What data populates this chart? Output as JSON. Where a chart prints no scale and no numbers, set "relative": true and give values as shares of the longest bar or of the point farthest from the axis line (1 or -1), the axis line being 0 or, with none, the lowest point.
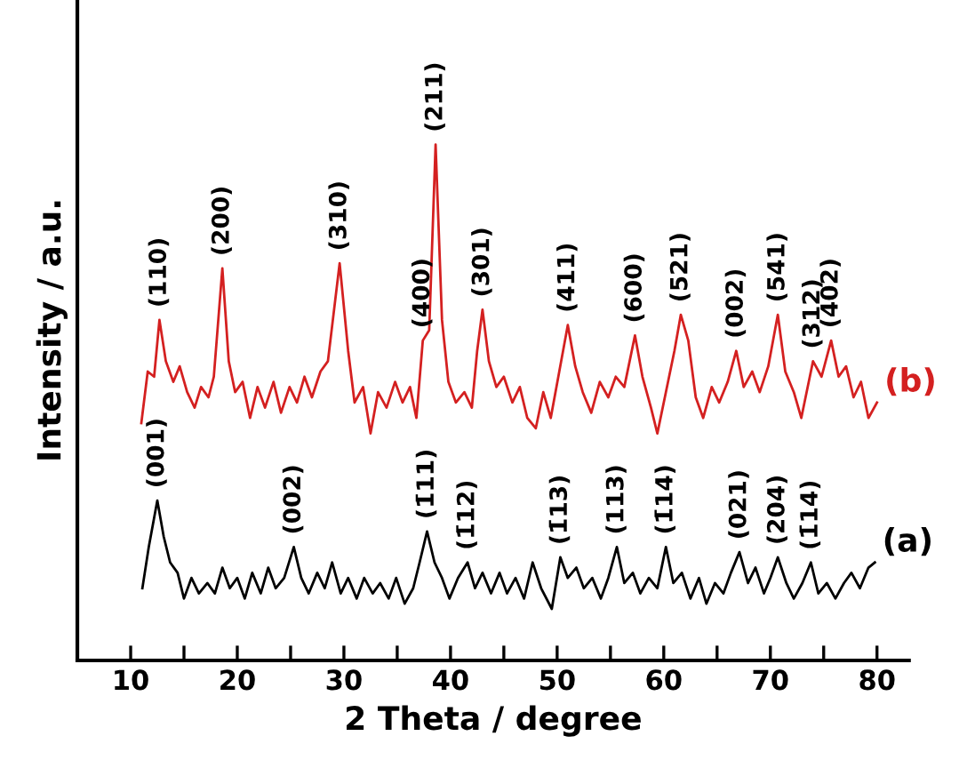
{
  "chart_data": {
    "type": "line",
    "xlabel": "2 Theta / degree",
    "ylabel": "Intensity / a.u.",
    "relative": true,
    "legend": false,
    "grid": false,
    "marker": "none",
    "line_style": "solid",
    "tick_labels": "x",
    "xlim": [
      5,
      83
    ],
    "xticks": [
      10,
      {
        "value": 15,
        "label": null
      },
      20,
      {
        "value": 25,
        "label": null
      },
      30,
      {
        "value": 35,
        "label": null
      },
      40,
      {
        "value": 45,
        "label": null
      },
      50,
      {
        "value": 55,
        "label": null
      },
      60,
      {
        "value": 65,
        "label": null
      },
      70,
      {
        "value": 75,
        "label": null
      },
      80
    ],
    "series": [
      {
        "name": "(b)",
        "color": "#d42020",
        "x": [
          11.0,
          11.6,
          12.2,
          12.7,
          13.3,
          14.0,
          14.6,
          15.3,
          16.0,
          16.6,
          17.3,
          17.8,
          18.6,
          19.2,
          19.8,
          20.5,
          21.2,
          21.9,
          22.6,
          23.4,
          24.1,
          24.9,
          25.6,
          26.3,
          27.0,
          27.8,
          28.5,
          29.6,
          30.4,
          31.0,
          31.8,
          32.5,
          33.2,
          34.0,
          34.8,
          35.5,
          36.2,
          36.8,
          37.4,
          38.0,
          38.6,
          39.2,
          39.8,
          40.5,
          41.3,
          42.0,
          42.5,
          43.0,
          43.6,
          44.3,
          45.0,
          45.8,
          46.5,
          47.2,
          48.0,
          48.7,
          49.4,
          50.2,
          51.0,
          51.7,
          52.4,
          53.2,
          54.0,
          54.8,
          55.5,
          56.3,
          57.3,
          58.0,
          58.8,
          59.4,
          60.2,
          61.0,
          61.6,
          62.3,
          63.0,
          63.7,
          64.5,
          65.2,
          66.0,
          66.8,
          67.5,
          68.3,
          69.0,
          69.8,
          70.7,
          71.4,
          72.2,
          72.9,
          73.6,
          74.0,
          74.8,
          75.7,
          76.4,
          77.1,
          77.8,
          78.5,
          79.2,
          80.0
        ],
        "values": [
          0.46,
          0.56,
          0.55,
          0.66,
          0.58,
          0.54,
          0.57,
          0.52,
          0.49,
          0.53,
          0.51,
          0.55,
          0.76,
          0.58,
          0.52,
          0.54,
          0.47,
          0.53,
          0.49,
          0.54,
          0.48,
          0.53,
          0.5,
          0.55,
          0.51,
          0.56,
          0.58,
          0.77,
          0.6,
          0.5,
          0.53,
          0.44,
          0.52,
          0.49,
          0.54,
          0.5,
          0.53,
          0.47,
          0.62,
          0.64,
          1.0,
          0.66,
          0.54,
          0.5,
          0.52,
          0.49,
          0.6,
          0.68,
          0.58,
          0.53,
          0.55,
          0.5,
          0.53,
          0.47,
          0.45,
          0.52,
          0.47,
          0.56,
          0.65,
          0.57,
          0.52,
          0.48,
          0.54,
          0.51,
          0.55,
          0.53,
          0.63,
          0.55,
          0.49,
          0.44,
          0.52,
          0.6,
          0.67,
          0.62,
          0.51,
          0.47,
          0.53,
          0.5,
          0.54,
          0.6,
          0.53,
          0.56,
          0.52,
          0.57,
          0.67,
          0.56,
          0.52,
          0.47,
          0.54,
          0.58,
          0.55,
          0.62,
          0.55,
          0.57,
          0.51,
          0.54,
          0.47,
          0.5
        ]
      },
      {
        "name": "(a)",
        "color": "#000000",
        "x": [
          11.1,
          11.7,
          12.5,
          13.1,
          13.7,
          14.4,
          15.0,
          15.7,
          16.4,
          17.2,
          17.9,
          18.6,
          19.3,
          20.0,
          20.7,
          21.4,
          22.2,
          22.9,
          23.6,
          24.4,
          25.3,
          26.0,
          26.7,
          27.5,
          28.2,
          28.9,
          29.7,
          30.4,
          31.2,
          31.9,
          32.7,
          33.4,
          34.2,
          34.9,
          35.7,
          36.5,
          37.1,
          37.8,
          38.5,
          39.2,
          39.9,
          40.7,
          41.6,
          42.3,
          43.0,
          43.8,
          44.6,
          45.3,
          46.1,
          46.9,
          47.7,
          48.5,
          49.5,
          50.3,
          51.0,
          51.8,
          52.5,
          53.3,
          54.1,
          54.8,
          55.6,
          56.3,
          57.1,
          57.8,
          58.6,
          59.4,
          60.2,
          60.9,
          61.7,
          62.5,
          63.3,
          64.0,
          64.8,
          65.6,
          66.3,
          67.1,
          67.9,
          68.6,
          69.4,
          70.0,
          70.7,
          71.5,
          72.2,
          73.0,
          73.8,
          74.5,
          75.3,
          76.1,
          76.9,
          77.6,
          78.4,
          79.2,
          79.8
        ],
        "values": [
          0.14,
          0.22,
          0.31,
          0.24,
          0.19,
          0.17,
          0.12,
          0.16,
          0.13,
          0.15,
          0.13,
          0.18,
          0.14,
          0.16,
          0.12,
          0.17,
          0.13,
          0.18,
          0.14,
          0.16,
          0.22,
          0.16,
          0.13,
          0.17,
          0.14,
          0.19,
          0.13,
          0.16,
          0.12,
          0.16,
          0.13,
          0.15,
          0.12,
          0.16,
          0.11,
          0.14,
          0.19,
          0.25,
          0.19,
          0.16,
          0.12,
          0.16,
          0.19,
          0.14,
          0.17,
          0.13,
          0.17,
          0.13,
          0.16,
          0.12,
          0.19,
          0.14,
          0.1,
          0.2,
          0.16,
          0.18,
          0.14,
          0.16,
          0.12,
          0.16,
          0.22,
          0.15,
          0.17,
          0.13,
          0.16,
          0.14,
          0.22,
          0.15,
          0.17,
          0.12,
          0.16,
          0.11,
          0.15,
          0.13,
          0.17,
          0.21,
          0.15,
          0.18,
          0.13,
          0.16,
          0.2,
          0.15,
          0.12,
          0.15,
          0.19,
          0.13,
          0.15,
          0.12,
          0.15,
          0.17,
          0.14,
          0.18,
          0.19
        ]
      }
    ],
    "annotations": [
      {
        "text": "(110)",
        "x": 12.7,
        "y": 0.66
      },
      {
        "text": "(200)",
        "x": 18.6,
        "y": 0.76
      },
      {
        "text": "(310)",
        "x": 29.6,
        "y": 0.77
      },
      {
        "text": "(400)",
        "x": 37.4,
        "y": 0.62
      },
      {
        "text": "(211)",
        "x": 38.6,
        "y": 1.0
      },
      {
        "text": "(301)",
        "x": 43.0,
        "y": 0.68
      },
      {
        "text": "(411)",
        "x": 51.0,
        "y": 0.65
      },
      {
        "text": "(600)",
        "x": 57.3,
        "y": 0.63
      },
      {
        "text": "(521)",
        "x": 61.6,
        "y": 0.67
      },
      {
        "text": "(002)",
        "x": 66.8,
        "y": 0.6
      },
      {
        "text": "(541)",
        "x": 70.7,
        "y": 0.67
      },
      {
        "text": "(312)",
        "x": 74.0,
        "y": 0.58
      },
      {
        "text": "(402)",
        "x": 75.7,
        "y": 0.62
      },
      {
        "text": "(001)",
        "x": 12.5,
        "y": 0.31
      },
      {
        "text": "(002)",
        "x": 25.3,
        "y": 0.22
      },
      {
        "text": "(1̄11)",
        "x": 37.8,
        "y": 0.25
      },
      {
        "text": "(1̄12)",
        "x": 41.6,
        "y": 0.19
      },
      {
        "text": "(1̄13)",
        "x": 50.3,
        "y": 0.2
      },
      {
        "text": "(113)",
        "x": 55.6,
        "y": 0.22
      },
      {
        "text": "(1̄14)",
        "x": 60.2,
        "y": 0.22
      },
      {
        "text": "(021)",
        "x": 67.1,
        "y": 0.21
      },
      {
        "text": "(204)",
        "x": 70.7,
        "y": 0.2
      },
      {
        "text": "(1̄14)",
        "x": 73.8,
        "y": 0.19
      }
    ]
  }
}
